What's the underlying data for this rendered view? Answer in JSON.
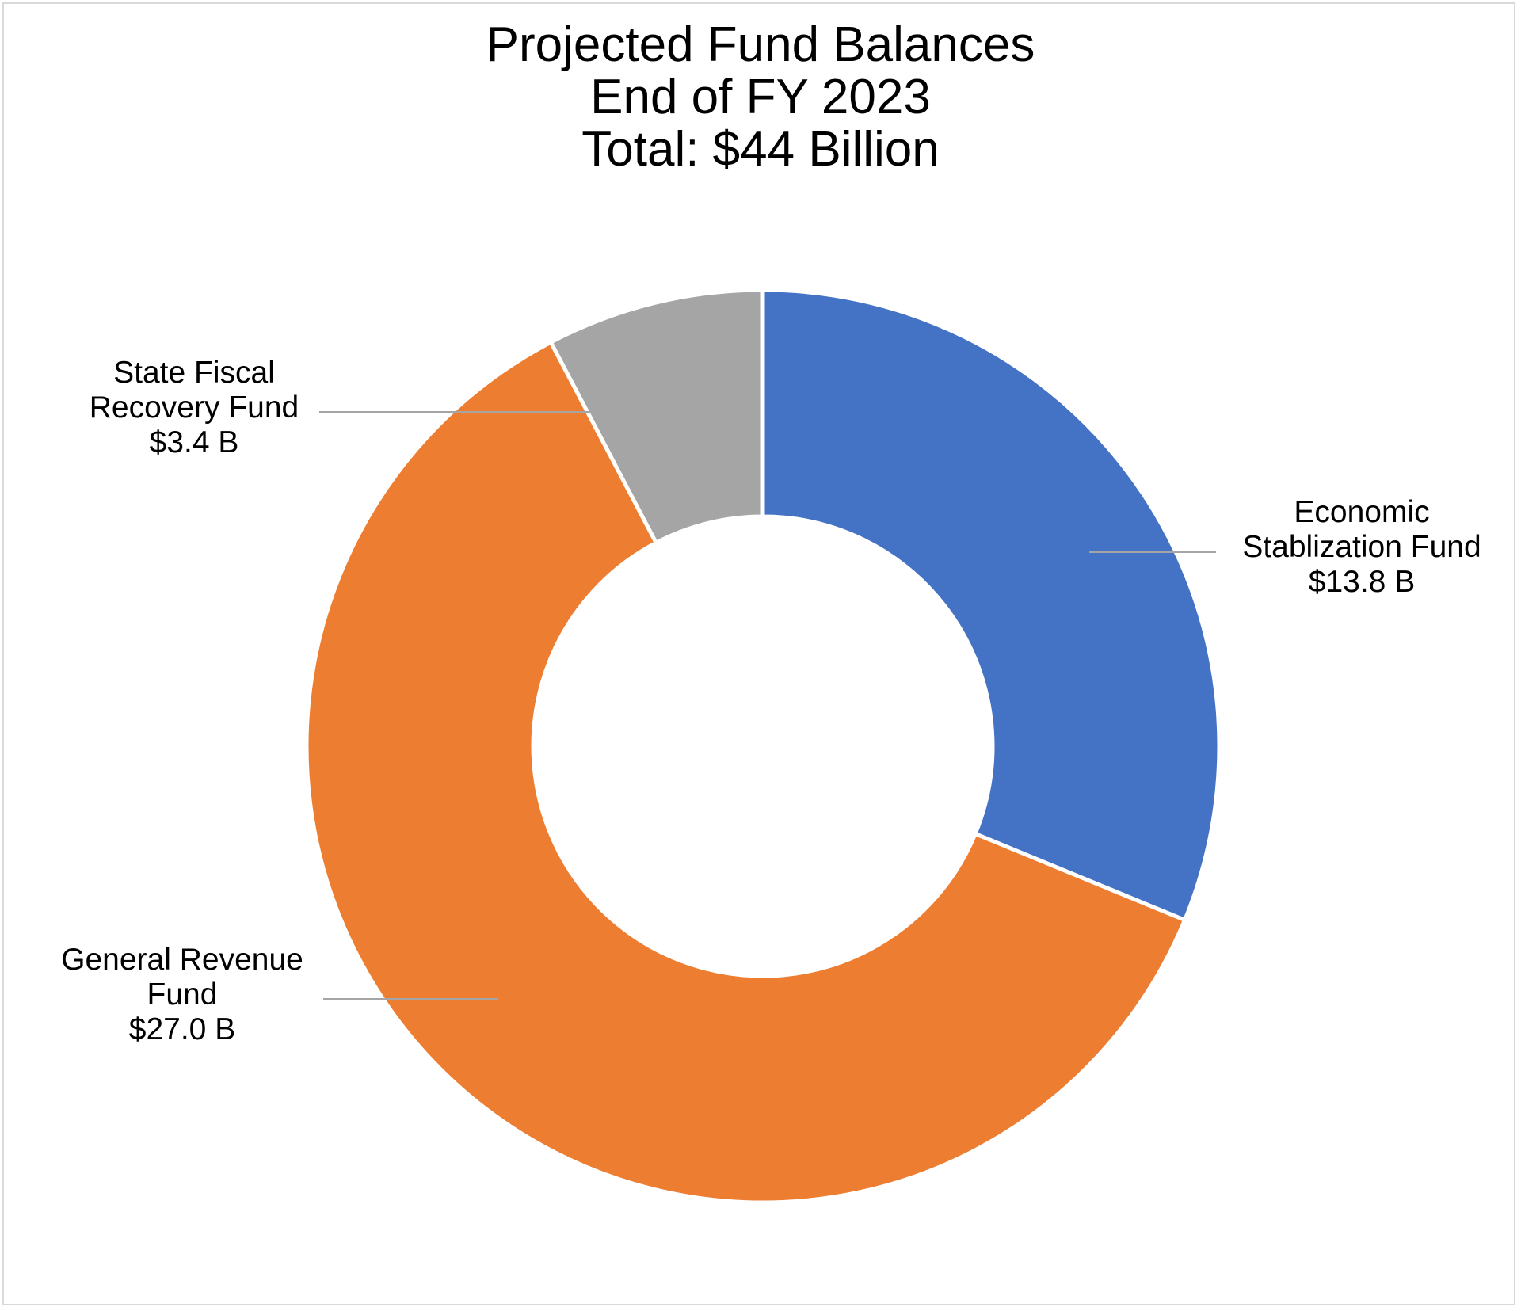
{
  "chart_data": {
    "type": "pie",
    "variant": "donut",
    "title": [
      "Projected Fund Balances",
      "End of FY 2023",
      "Total: $44 Billion"
    ],
    "slices": [
      {
        "name": "Economic Stablization Fund",
        "label_lines": [
          "Economic",
          "Stablization Fund",
          "$13.8 B"
        ],
        "value": 13.8,
        "color": "#4472C4"
      },
      {
        "name": "General Revenue Fund",
        "label_lines": [
          "General Revenue",
          "Fund",
          "$27.0 B"
        ],
        "value": 27.0,
        "color": "#ED7D31"
      },
      {
        "name": "State Fiscal Recovery Fund",
        "label_lines": [
          "State Fiscal",
          "Recovery Fund",
          "$3.4 B"
        ],
        "value": 3.4,
        "color": "#A5A5A5"
      }
    ],
    "start_angle": "12 o'clock",
    "direction": "clockwise",
    "legend": "none",
    "leader_line_color": "#A5A5A5"
  }
}
